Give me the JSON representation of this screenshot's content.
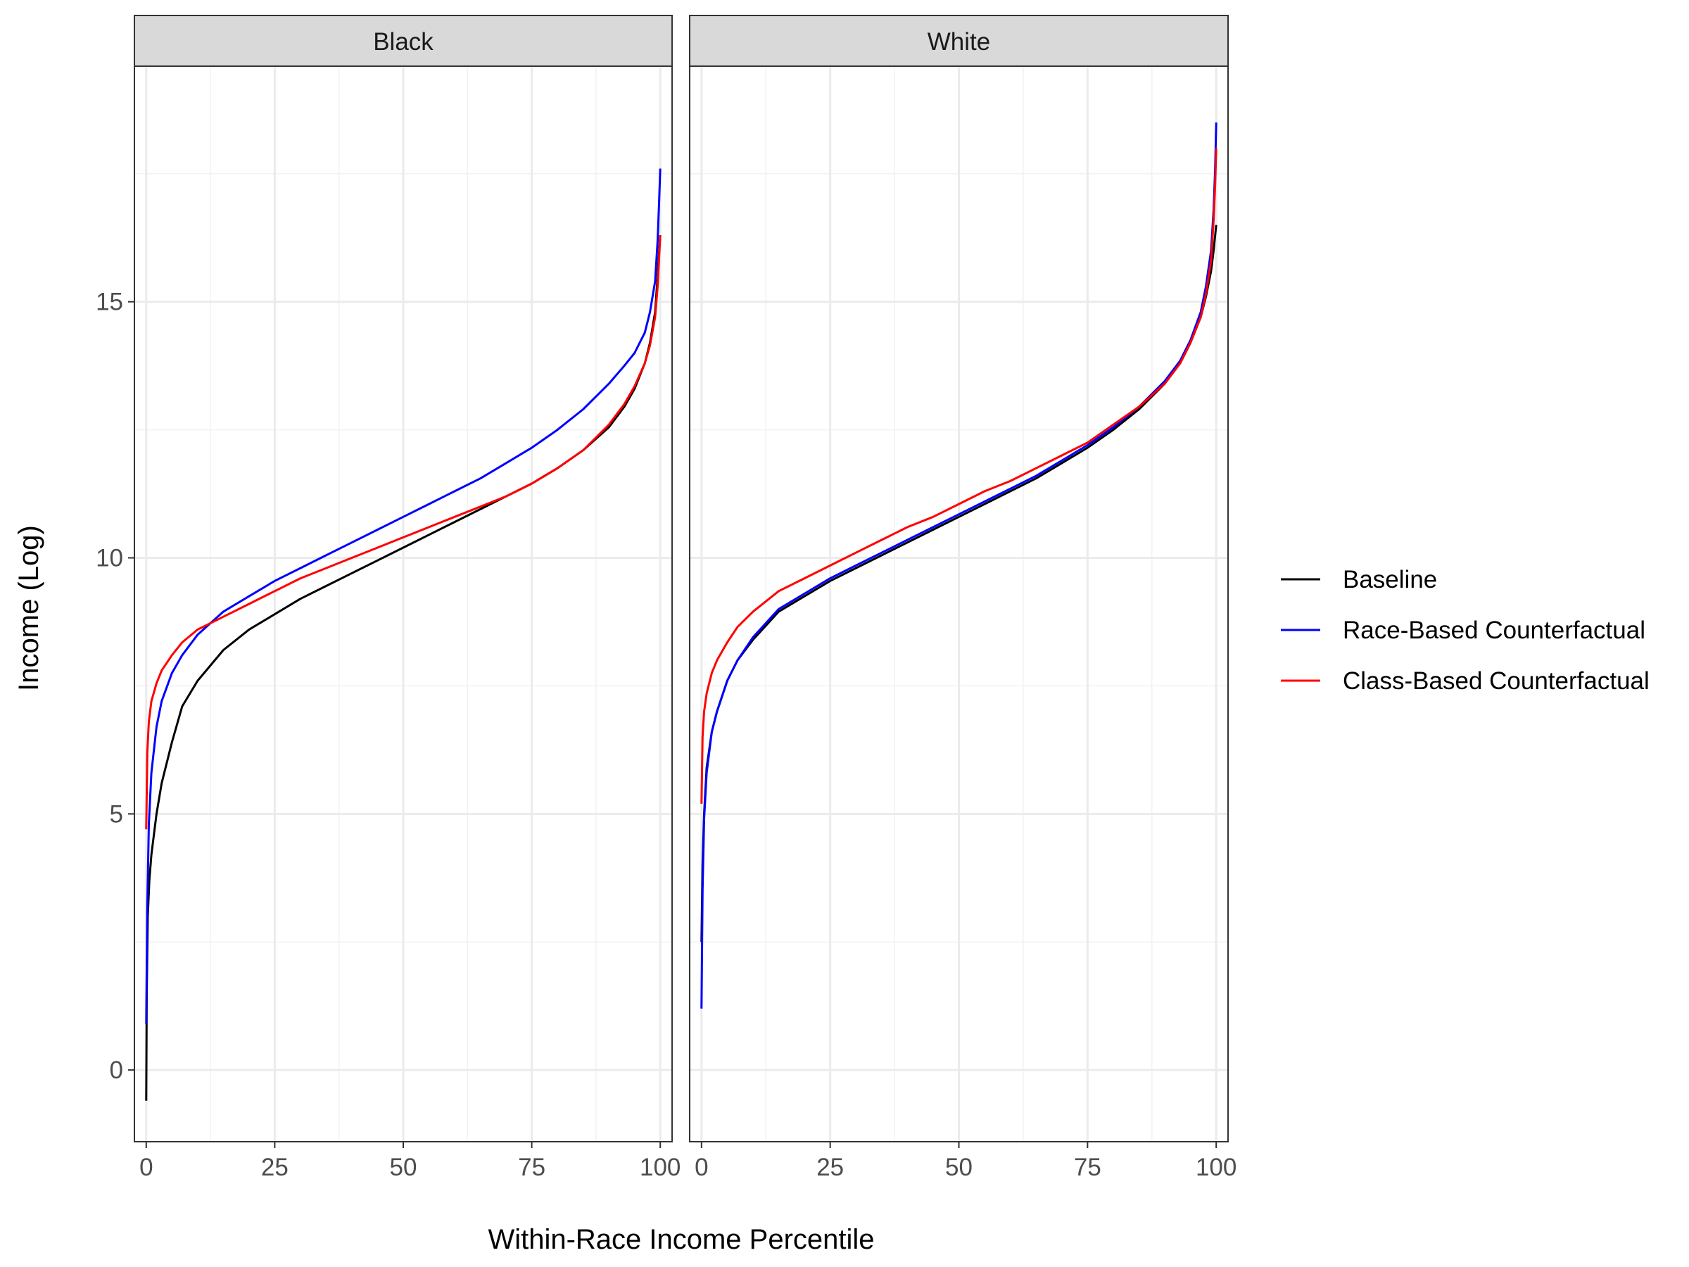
{
  "chart_data": {
    "type": "line",
    "xlabel": "Within-Race Income Percentile",
    "ylabel": "Income (Log)",
    "xlim": [
      -2.3,
      102.3
    ],
    "ylim": [
      -1.4,
      19.6
    ],
    "x_ticks": [
      0,
      25,
      50,
      75,
      100
    ],
    "y_ticks": [
      0,
      5,
      10,
      15
    ],
    "grid": true,
    "legend_position": "right",
    "series_styles": [
      {
        "name": "Baseline",
        "color": "#000000"
      },
      {
        "name": "Race-Based Counterfactual",
        "color": "#0000ff"
      },
      {
        "name": "Class-Based Counterfactual",
        "color": "#ff0000"
      }
    ],
    "panels": [
      {
        "label": "Black",
        "series": [
          {
            "name": "Baseline",
            "color": "#000000",
            "x": [
              0,
              0.1,
              0.3,
              0.6,
              1,
              2,
              3,
              5,
              7,
              10,
              15,
              20,
              25,
              30,
              35,
              40,
              45,
              50,
              55,
              60,
              65,
              70,
              75,
              80,
              85,
              90,
              93,
              95,
              97,
              98,
              99,
              99.5,
              99.8,
              100
            ],
            "y": [
              -0.6,
              1.5,
              3.0,
              3.7,
              4.2,
              5.0,
              5.6,
              6.4,
              7.1,
              7.6,
              8.2,
              8.6,
              8.9,
              9.2,
              9.45,
              9.7,
              9.95,
              10.2,
              10.45,
              10.7,
              10.95,
              11.2,
              11.45,
              11.75,
              12.1,
              12.55,
              12.95,
              13.3,
              13.8,
              14.2,
              14.8,
              15.5,
              16.0,
              16.3
            ]
          },
          {
            "name": "Race-Based Counterfactual",
            "color": "#0000ff",
            "x": [
              0,
              0.2,
              0.5,
              1,
              2,
              3,
              5,
              7,
              10,
              15,
              20,
              25,
              30,
              35,
              40,
              45,
              50,
              55,
              60,
              65,
              70,
              75,
              80,
              85,
              90,
              93,
              95,
              97,
              98,
              99,
              99.5,
              99.8,
              100
            ],
            "y": [
              0.9,
              3.2,
              4.8,
              5.8,
              6.7,
              7.2,
              7.75,
              8.1,
              8.5,
              8.95,
              9.25,
              9.55,
              9.8,
              10.05,
              10.3,
              10.55,
              10.8,
              11.05,
              11.3,
              11.55,
              11.85,
              12.15,
              12.5,
              12.9,
              13.4,
              13.75,
              14.0,
              14.4,
              14.8,
              15.4,
              16.2,
              17.0,
              17.6
            ]
          },
          {
            "name": "Class-Based Counterfactual",
            "color": "#ff0000",
            "x": [
              0,
              0.2,
              0.5,
              1,
              2,
              3,
              5,
              7,
              10,
              15,
              20,
              25,
              30,
              35,
              40,
              45,
              50,
              55,
              60,
              65,
              70,
              75,
              80,
              85,
              90,
              93,
              95,
              97,
              98,
              99,
              99.5,
              99.8,
              100
            ],
            "y": [
              4.7,
              6.2,
              6.8,
              7.2,
              7.55,
              7.8,
              8.1,
              8.35,
              8.6,
              8.85,
              9.1,
              9.35,
              9.6,
              9.8,
              10.0,
              10.2,
              10.4,
              10.6,
              10.8,
              11.0,
              11.2,
              11.45,
              11.75,
              12.1,
              12.6,
              13.0,
              13.35,
              13.8,
              14.15,
              14.7,
              15.3,
              15.9,
              16.3
            ]
          }
        ]
      },
      {
        "label": "White",
        "series": [
          {
            "name": "Baseline",
            "color": "#000000",
            "x": [
              0,
              0.2,
              0.5,
              1,
              2,
              3,
              5,
              7,
              10,
              15,
              20,
              25,
              30,
              35,
              40,
              45,
              50,
              55,
              60,
              65,
              70,
              75,
              80,
              85,
              90,
              93,
              95,
              97,
              98,
              99,
              99.5,
              99.8,
              100
            ],
            "y": [
              2.5,
              4.0,
              5.0,
              5.9,
              6.6,
              7.0,
              7.6,
              8.0,
              8.4,
              8.95,
              9.25,
              9.55,
              9.8,
              10.05,
              10.3,
              10.55,
              10.8,
              11.05,
              11.3,
              11.55,
              11.85,
              12.15,
              12.5,
              12.9,
              13.4,
              13.8,
              14.2,
              14.7,
              15.1,
              15.6,
              16.0,
              16.3,
              16.5
            ]
          },
          {
            "name": "Race-Based Counterfactual",
            "color": "#0000ff",
            "x": [
              0,
              0.2,
              0.5,
              1,
              2,
              3,
              5,
              7,
              10,
              15,
              20,
              25,
              30,
              35,
              40,
              45,
              50,
              55,
              60,
              65,
              70,
              75,
              80,
              85,
              90,
              93,
              95,
              97,
              98,
              99,
              99.5,
              99.8,
              100
            ],
            "y": [
              1.2,
              3.5,
              4.9,
              5.8,
              6.6,
              7.0,
              7.6,
              8.0,
              8.45,
              9.0,
              9.3,
              9.6,
              9.85,
              10.1,
              10.35,
              10.6,
              10.85,
              11.1,
              11.35,
              11.6,
              11.9,
              12.2,
              12.55,
              12.95,
              13.45,
              13.85,
              14.25,
              14.8,
              15.3,
              16.0,
              16.8,
              17.6,
              18.5
            ]
          },
          {
            "name": "Class-Based Counterfactual",
            "color": "#ff0000",
            "x": [
              0,
              0.2,
              0.5,
              1,
              2,
              3,
              5,
              7,
              10,
              15,
              20,
              25,
              30,
              35,
              40,
              45,
              50,
              55,
              60,
              65,
              70,
              75,
              80,
              85,
              90,
              93,
              95,
              97,
              98,
              99,
              99.5,
              99.8,
              100
            ],
            "y": [
              5.2,
              6.5,
              7.0,
              7.35,
              7.75,
              8.0,
              8.35,
              8.65,
              8.95,
              9.35,
              9.6,
              9.85,
              10.1,
              10.35,
              10.6,
              10.8,
              11.05,
              11.3,
              11.5,
              11.75,
              12.0,
              12.25,
              12.6,
              12.95,
              13.4,
              13.8,
              14.2,
              14.7,
              15.15,
              15.8,
              16.6,
              17.3,
              18.0
            ]
          }
        ]
      }
    ]
  }
}
